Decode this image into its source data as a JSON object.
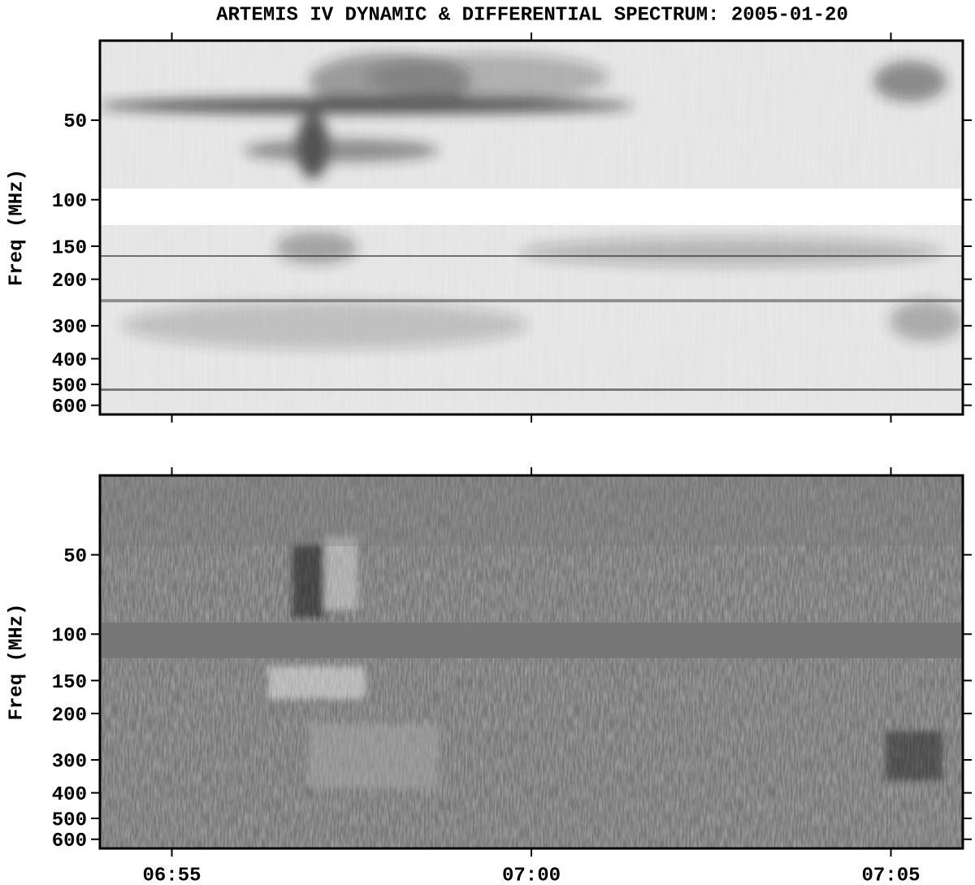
{
  "chart_data": [
    {
      "type": "heatmap",
      "title": "ARTEMIS IV DYNAMIC & DIFFERENTIAL SPECTRUM: 2005-01-20",
      "ylabel": "Freq (MHz)",
      "yscale": "log",
      "ylim": [
        25,
        650
      ],
      "yticks": [
        50,
        100,
        150,
        200,
        300,
        400,
        500,
        600
      ],
      "xlim": [
        "06:54",
        "07:06"
      ],
      "xticks": [
        "06:55",
        "07:00",
        "07:05"
      ]
    },
    {
      "type": "heatmap",
      "ylabel": "Freq (MHz)",
      "yscale": "log",
      "ylim": [
        25,
        650
      ],
      "yticks": [
        50,
        100,
        150,
        200,
        300,
        400,
        500,
        600
      ],
      "xlim": [
        "06:54",
        "07:06"
      ],
      "xticks": [
        "06:55",
        "07:00",
        "07:05"
      ]
    }
  ]
}
